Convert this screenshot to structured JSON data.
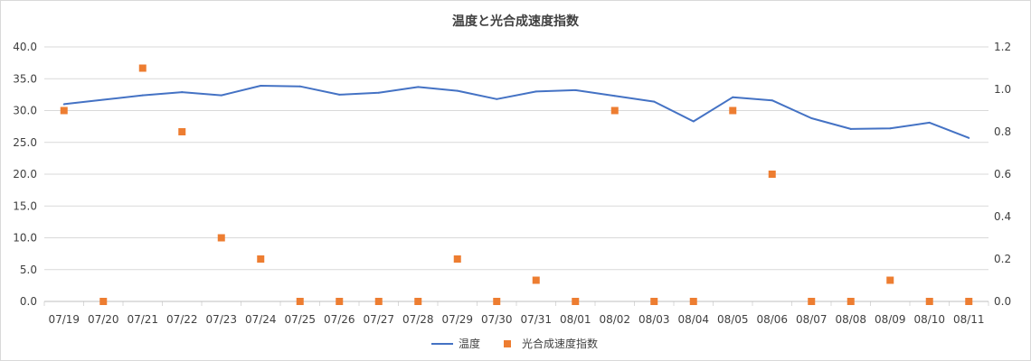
{
  "chart_data": {
    "type": "line+scatter",
    "title": "温度と光合成速度指数",
    "categories": [
      "07/19",
      "07/20",
      "07/21",
      "07/22",
      "07/23",
      "07/24",
      "07/25",
      "07/26",
      "07/27",
      "07/28",
      "07/29",
      "07/30",
      "07/31",
      "08/01",
      "08/02",
      "08/03",
      "08/04",
      "08/05",
      "08/06",
      "08/07",
      "08/08",
      "08/09",
      "08/10",
      "08/11"
    ],
    "series": [
      {
        "name": "温度",
        "type": "line",
        "axis": "left",
        "color": "#4472c4",
        "values": [
          31.0,
          31.7,
          32.4,
          32.9,
          32.4,
          33.9,
          33.8,
          32.5,
          32.8,
          33.7,
          33.1,
          31.8,
          33.0,
          33.2,
          32.3,
          31.4,
          28.3,
          32.1,
          31.6,
          28.8,
          27.1,
          27.2,
          28.1,
          25.7
        ]
      },
      {
        "name": "光合成速度指数",
        "type": "scatter",
        "axis": "right",
        "color": "#ed7d31",
        "values": [
          0.9,
          0.0,
          1.1,
          0.8,
          0.3,
          0.2,
          0.0,
          0.0,
          0.0,
          0.0,
          0.2,
          0.0,
          0.1,
          0.0,
          0.9,
          0.0,
          0.0,
          0.9,
          0.6,
          0.0,
          0.0,
          0.1,
          0.0,
          0.0
        ]
      }
    ],
    "y_left": {
      "min": 0,
      "max": 40,
      "step": 5,
      "tick_labels": [
        "0.0",
        "5.0",
        "10.0",
        "15.0",
        "20.0",
        "25.0",
        "30.0",
        "35.0",
        "40.0"
      ]
    },
    "y_right": {
      "min": 0,
      "max": 1.2,
      "step": 0.2,
      "tick_labels": [
        "0.0",
        "0.2",
        "0.4",
        "0.6",
        "0.8",
        "1.0",
        "1.2"
      ]
    },
    "grid": true,
    "legend_position": "bottom"
  }
}
